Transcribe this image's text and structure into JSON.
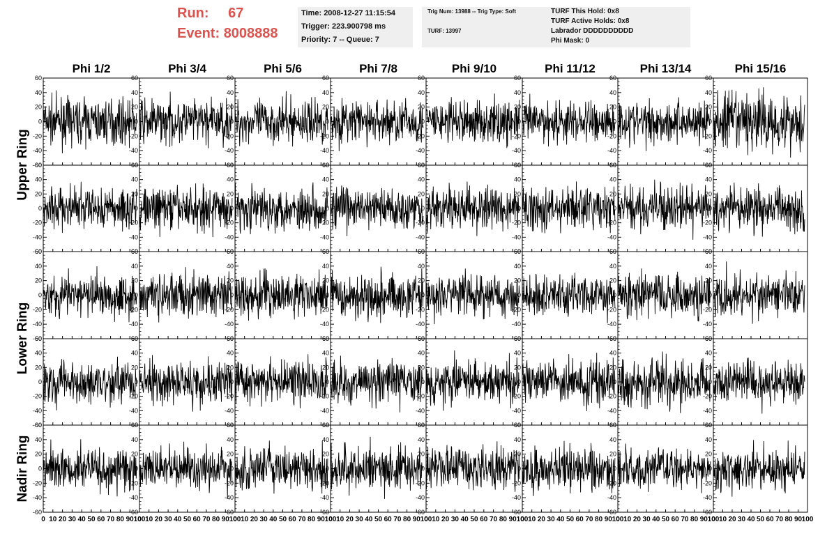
{
  "header": {
    "run_label": "Run:",
    "run_value": "67",
    "event_label": "Event:",
    "event_value": "8008888",
    "time_line": "Time: 2008-12-27 11:15:54",
    "trigger_line": "Trigger: 223.900798 ms",
    "priority_line": "Priority: 7 -- Queue: 7",
    "trig_line": "Trig Num: 13988 -- Trig Type: Soft",
    "turf_line": "TURF: 13997",
    "hold_line": "TURF This Hold: 0x8",
    "active_holds_line": "TURF Active Holds: 0x8",
    "labrador_line": "Labrador DDDDDDDDDD",
    "phi_mask_line": "Phi Mask: 0"
  },
  "colors": {
    "run_text": "#d9534f",
    "info_box_bg": "#efefef",
    "trace": "#000000"
  },
  "chart_data": {
    "type": "line",
    "title": "",
    "columns": [
      "Phi 1/2",
      "Phi 3/4",
      "Phi 5/6",
      "Phi 7/8",
      "Phi 9/10",
      "Phi 11/12",
      "Phi 13/14",
      "Phi 15/16"
    ],
    "rows": [
      "Upper Ring",
      "Lower Ring",
      "Nadir Ring"
    ],
    "xlim": [
      0,
      100
    ],
    "ylim": [
      -60,
      60
    ],
    "x_ticks": [
      0,
      10,
      20,
      30,
      40,
      50,
      60,
      70,
      80,
      90,
      100
    ],
    "y_ticks": [
      -60,
      -40,
      -20,
      0,
      20,
      40,
      60
    ],
    "panels_per_column": 5,
    "samples_per_trace": 260,
    "typical_amplitude": 15,
    "grid": false,
    "legend": "none"
  }
}
